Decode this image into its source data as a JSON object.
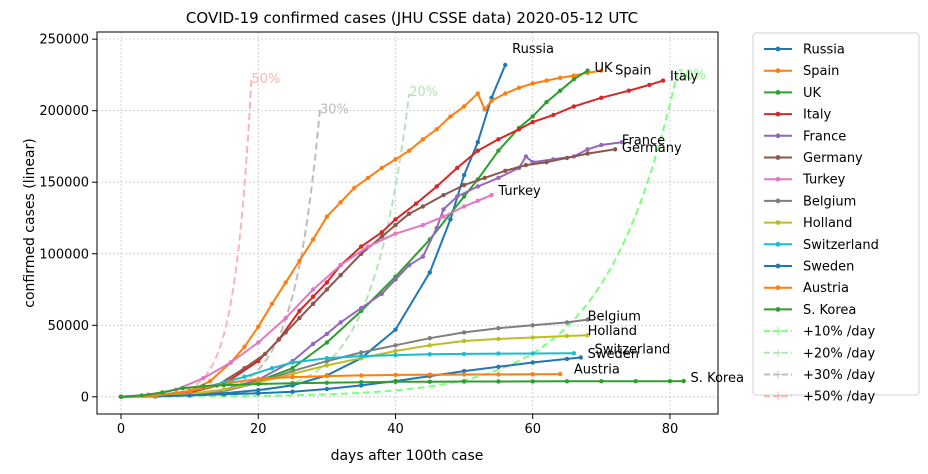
{
  "chart_data": {
    "type": "line",
    "title": "COVID-19 confirmed cases (JHU CSSE data) 2020-05-12 UTC",
    "xlabel": "days after 100th case",
    "ylabel": "confirmed cases (linear)",
    "xlim": [
      -3.5,
      87
    ],
    "ylim": [
      -12000,
      255000
    ],
    "xticks": [
      0,
      20,
      40,
      60,
      80
    ],
    "yticks": [
      0,
      50000,
      100000,
      150000,
      200000,
      250000
    ],
    "grid": true,
    "legend_position": "outside-right",
    "series": [
      {
        "name": "Russia",
        "color": "#1f77b4",
        "dashed": false,
        "markers": true,
        "label": "Russia",
        "label_at": [
          57,
          243000
        ],
        "points": [
          [
            0,
            100
          ],
          [
            5,
            300
          ],
          [
            10,
            1000
          ],
          [
            15,
            2500
          ],
          [
            20,
            4700
          ],
          [
            25,
            8000
          ],
          [
            30,
            15000
          ],
          [
            35,
            27000
          ],
          [
            40,
            47000
          ],
          [
            45,
            87000
          ],
          [
            48,
            124000
          ],
          [
            50,
            155000
          ],
          [
            52,
            178000
          ],
          [
            54,
            209000
          ],
          [
            56,
            232000
          ]
        ]
      },
      {
        "name": "Spain",
        "color": "#ff7f0e",
        "dashed": false,
        "markers": true,
        "label": "Spain",
        "label_at": [
          72,
          228000
        ],
        "points": [
          [
            0,
            100
          ],
          [
            5,
            800
          ],
          [
            10,
            4000
          ],
          [
            13,
            11000
          ],
          [
            16,
            24000
          ],
          [
            18,
            35000
          ],
          [
            20,
            49000
          ],
          [
            22,
            65000
          ],
          [
            24,
            80000
          ],
          [
            26,
            95000
          ],
          [
            28,
            110000
          ],
          [
            30,
            126000
          ],
          [
            32,
            136000
          ],
          [
            34,
            146000
          ],
          [
            36,
            153000
          ],
          [
            38,
            160000
          ],
          [
            40,
            166000
          ],
          [
            42,
            172000
          ],
          [
            44,
            180000
          ],
          [
            46,
            187000
          ],
          [
            48,
            196000
          ],
          [
            50,
            203000
          ],
          [
            52,
            212000
          ],
          [
            53,
            201000
          ],
          [
            54,
            207000
          ],
          [
            56,
            212000
          ],
          [
            58,
            216000
          ],
          [
            60,
            219000
          ],
          [
            62,
            221000
          ],
          [
            64,
            223000
          ],
          [
            66,
            224500
          ],
          [
            68,
            226500
          ],
          [
            70,
            228000
          ]
        ]
      },
      {
        "name": "UK",
        "color": "#2ca02c",
        "dashed": false,
        "markers": true,
        "label": "UK",
        "label_at": [
          69,
          230000
        ],
        "points": [
          [
            0,
            100
          ],
          [
            5,
            600
          ],
          [
            10,
            2000
          ],
          [
            15,
            5000
          ],
          [
            20,
            11000
          ],
          [
            25,
            20000
          ],
          [
            30,
            38000
          ],
          [
            35,
            60000
          ],
          [
            40,
            84000
          ],
          [
            45,
            110000
          ],
          [
            50,
            140000
          ],
          [
            52,
            152000
          ],
          [
            55,
            172000
          ],
          [
            58,
            188000
          ],
          [
            60,
            196000
          ],
          [
            62,
            206000
          ],
          [
            64,
            214000
          ],
          [
            66,
            222000
          ],
          [
            68,
            228000
          ]
        ]
      },
      {
        "name": "Italy",
        "color": "#d62728",
        "dashed": false,
        "markers": true,
        "label": "Italy",
        "label_at": [
          80,
          224000
        ],
        "points": [
          [
            0,
            100
          ],
          [
            5,
            700
          ],
          [
            10,
            3000
          ],
          [
            15,
            9000
          ],
          [
            20,
            25000
          ],
          [
            23,
            40000
          ],
          [
            26,
            60000
          ],
          [
            28,
            70000
          ],
          [
            30,
            80000
          ],
          [
            32,
            92000
          ],
          [
            35,
            105000
          ],
          [
            38,
            115000
          ],
          [
            40,
            124000
          ],
          [
            43,
            135000
          ],
          [
            46,
            147000
          ],
          [
            49,
            160000
          ],
          [
            52,
            172000
          ],
          [
            55,
            180000
          ],
          [
            58,
            187000
          ],
          [
            60,
            192000
          ],
          [
            63,
            197000
          ],
          [
            66,
            203000
          ],
          [
            70,
            209000
          ],
          [
            74,
            214000
          ],
          [
            77,
            218000
          ],
          [
            79,
            221000
          ]
        ]
      },
      {
        "name": "France",
        "color": "#9467bd",
        "dashed": false,
        "markers": true,
        "label": "France",
        "label_at": [
          73,
          179000
        ],
        "points": [
          [
            0,
            100
          ],
          [
            5,
            500
          ],
          [
            10,
            1800
          ],
          [
            15,
            5000
          ],
          [
            20,
            12000
          ],
          [
            25,
            25000
          ],
          [
            28,
            37000
          ],
          [
            30,
            44000
          ],
          [
            32,
            52000
          ],
          [
            35,
            62000
          ],
          [
            38,
            72000
          ],
          [
            40,
            82000
          ],
          [
            42,
            92000
          ],
          [
            44,
            98000
          ],
          [
            46,
            118000
          ],
          [
            47,
            131000
          ],
          [
            49,
            140000
          ],
          [
            52,
            147000
          ],
          [
            55,
            153000
          ],
          [
            58,
            160000
          ],
          [
            59,
            168000
          ],
          [
            60,
            164000
          ],
          [
            63,
            166000
          ],
          [
            66,
            168000
          ],
          [
            68,
            173000
          ],
          [
            70,
            176000
          ],
          [
            73,
            178000
          ]
        ]
      },
      {
        "name": "Germany",
        "color": "#8c564b",
        "dashed": false,
        "markers": true,
        "label": "Germany",
        "label_at": [
          73,
          174000
        ],
        "points": [
          [
            0,
            100
          ],
          [
            5,
            800
          ],
          [
            10,
            4000
          ],
          [
            14,
            8000
          ],
          [
            18,
            20000
          ],
          [
            21,
            30000
          ],
          [
            24,
            45000
          ],
          [
            26,
            55000
          ],
          [
            28,
            65000
          ],
          [
            30,
            75000
          ],
          [
            32,
            85000
          ],
          [
            35,
            100000
          ],
          [
            38,
            112000
          ],
          [
            40,
            120000
          ],
          [
            42,
            128000
          ],
          [
            44,
            133000
          ],
          [
            47,
            141000
          ],
          [
            50,
            148000
          ],
          [
            53,
            153000
          ],
          [
            56,
            158000
          ],
          [
            59,
            162000
          ],
          [
            62,
            164000
          ],
          [
            65,
            167000
          ],
          [
            68,
            170000
          ],
          [
            72,
            173000
          ]
        ]
      },
      {
        "name": "Turkey",
        "color": "#e377c2",
        "dashed": false,
        "markers": true,
        "label": "Turkey",
        "label_at": [
          55,
          144000
        ],
        "points": [
          [
            0,
            100
          ],
          [
            4,
            1500
          ],
          [
            8,
            5000
          ],
          [
            12,
            13000
          ],
          [
            16,
            24000
          ],
          [
            20,
            38000
          ],
          [
            24,
            55000
          ],
          [
            28,
            75000
          ],
          [
            32,
            92000
          ],
          [
            36,
            105000
          ],
          [
            40,
            114000
          ],
          [
            44,
            120000
          ],
          [
            47,
            126000
          ],
          [
            50,
            133000
          ],
          [
            52,
            137000
          ],
          [
            54,
            141000
          ]
        ]
      },
      {
        "name": "Belgium",
        "color": "#7f7f7f",
        "dashed": false,
        "markers": true,
        "label": "Belgium",
        "label_at": [
          68,
          56000
        ],
        "points": [
          [
            0,
            100
          ],
          [
            5,
            500
          ],
          [
            10,
            1500
          ],
          [
            15,
            4000
          ],
          [
            20,
            10000
          ],
          [
            25,
            18000
          ],
          [
            30,
            25000
          ],
          [
            35,
            31000
          ],
          [
            40,
            36000
          ],
          [
            45,
            41000
          ],
          [
            50,
            45000
          ],
          [
            55,
            48000
          ],
          [
            60,
            50000
          ],
          [
            65,
            52000
          ],
          [
            68,
            54000
          ]
        ]
      },
      {
        "name": "Holland",
        "color": "#bcbd22",
        "dashed": false,
        "markers": true,
        "label": "Holland",
        "label_at": [
          68,
          46000
        ],
        "points": [
          [
            0,
            100
          ],
          [
            5,
            600
          ],
          [
            10,
            2000
          ],
          [
            15,
            5000
          ],
          [
            20,
            10000
          ],
          [
            25,
            16000
          ],
          [
            30,
            22000
          ],
          [
            35,
            27000
          ],
          [
            40,
            32000
          ],
          [
            45,
            36000
          ],
          [
            50,
            39000
          ],
          [
            55,
            40500
          ],
          [
            60,
            41500
          ],
          [
            65,
            42500
          ],
          [
            68,
            43000
          ]
        ]
      },
      {
        "name": "Switzerland",
        "color": "#17becf",
        "dashed": false,
        "markers": true,
        "label": "Switzerland",
        "label_at": [
          69,
          33000
        ],
        "points": [
          [
            0,
            100
          ],
          [
            5,
            1000
          ],
          [
            10,
            4000
          ],
          [
            15,
            10000
          ],
          [
            18,
            14000
          ],
          [
            22,
            20000
          ],
          [
            25,
            24000
          ],
          [
            30,
            27000
          ],
          [
            35,
            28500
          ],
          [
            40,
            29200
          ],
          [
            45,
            29700
          ],
          [
            50,
            30000
          ],
          [
            55,
            30200
          ],
          [
            60,
            30300
          ],
          [
            66,
            30400
          ]
        ]
      },
      {
        "name": "Sweden",
        "color": "#1f77b4",
        "dashed": false,
        "markers": true,
        "label": "Sweden",
        "label_at": [
          68,
          30000
        ],
        "points": [
          [
            0,
            100
          ],
          [
            5,
            400
          ],
          [
            10,
            1000
          ],
          [
            15,
            1800
          ],
          [
            20,
            2500
          ],
          [
            25,
            3500
          ],
          [
            30,
            5500
          ],
          [
            35,
            8000
          ],
          [
            40,
            11000
          ],
          [
            45,
            14500
          ],
          [
            50,
            18000
          ],
          [
            55,
            21000
          ],
          [
            60,
            24000
          ],
          [
            65,
            26500
          ],
          [
            67,
            27500
          ]
        ]
      },
      {
        "name": "Austria",
        "color": "#ff7f0e",
        "dashed": false,
        "markers": true,
        "label": "Austria",
        "label_at": [
          66,
          19000
        ],
        "points": [
          [
            0,
            100
          ],
          [
            5,
            800
          ],
          [
            10,
            4000
          ],
          [
            13,
            7000
          ],
          [
            16,
            10000
          ],
          [
            20,
            12500
          ],
          [
            25,
            13800
          ],
          [
            30,
            14500
          ],
          [
            35,
            15000
          ],
          [
            40,
            15300
          ],
          [
            45,
            15500
          ],
          [
            50,
            15600
          ],
          [
            55,
            15700
          ],
          [
            60,
            15800
          ],
          [
            64,
            15900
          ]
        ]
      },
      {
        "name": "S. Korea",
        "color": "#2ca02c",
        "dashed": false,
        "markers": true,
        "label": "S. Korea",
        "label_at": [
          83,
          13000
        ],
        "points": [
          [
            0,
            100
          ],
          [
            3,
            900
          ],
          [
            6,
            3000
          ],
          [
            9,
            6000
          ],
          [
            12,
            7500
          ],
          [
            15,
            8200
          ],
          [
            20,
            9000
          ],
          [
            25,
            9500
          ],
          [
            30,
            9800
          ],
          [
            35,
            10200
          ],
          [
            40,
            10500
          ],
          [
            45,
            10600
          ],
          [
            50,
            10700
          ],
          [
            55,
            10750
          ],
          [
            60,
            10800
          ],
          [
            65,
            10850
          ],
          [
            70,
            10900
          ],
          [
            75,
            10930
          ],
          [
            80,
            10950
          ],
          [
            82,
            10990
          ]
        ]
      },
      {
        "name": "+10% /day",
        "color": "#7eff7e",
        "dashed": true,
        "markers": false,
        "label": "10%",
        "label_at": [
          81,
          225000
        ],
        "rate": 0.1,
        "xmax": 81
      },
      {
        "name": "+20% /day",
        "color": "#b6e3b6",
        "dashed": true,
        "markers": false,
        "label": "20%",
        "label_at": [
          42,
          213000
        ],
        "rate": 0.2,
        "xmax": 42
      },
      {
        "name": "+30% /day",
        "color": "#bdbdbd",
        "dashed": true,
        "markers": false,
        "label": "30%",
        "label_at": [
          29,
          201000
        ],
        "rate": 0.3,
        "xmax": 29
      },
      {
        "name": "+50% /day",
        "color": "#f7b6b2",
        "dashed": true,
        "markers": false,
        "label": "50%",
        "label_at": [
          19,
          222000
        ],
        "rate": 0.5,
        "xmax": 19
      }
    ]
  }
}
